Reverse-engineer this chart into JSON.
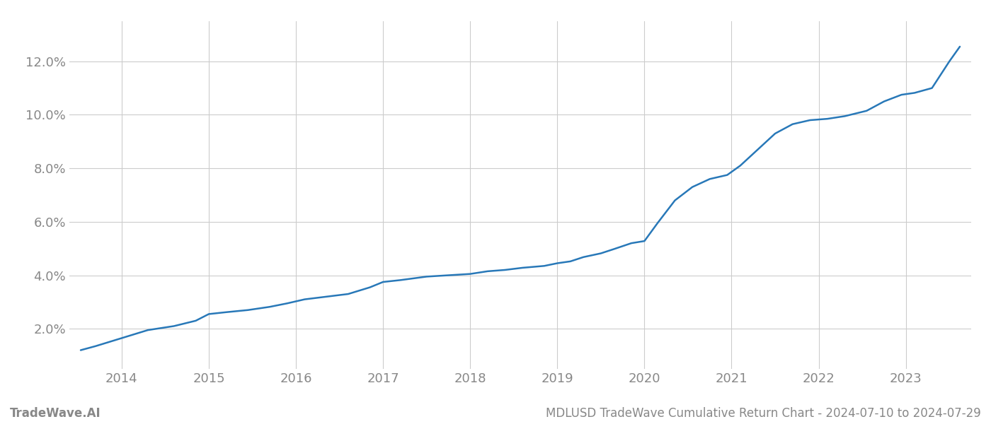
{
  "title": "MDLUSD TradeWave Cumulative Return Chart - 2024-07-10 to 2024-07-29",
  "watermark": "TradeWave.AI",
  "line_color": "#2878b8",
  "background_color": "#ffffff",
  "grid_color": "#cccccc",
  "x_values": [
    2013.53,
    2013.7,
    2013.9,
    2014.1,
    2014.3,
    2014.6,
    2014.85,
    2015.0,
    2015.2,
    2015.45,
    2015.7,
    2015.9,
    2016.1,
    2016.35,
    2016.6,
    2016.85,
    2017.0,
    2017.2,
    2017.5,
    2017.75,
    2018.0,
    2018.2,
    2018.4,
    2018.6,
    2018.85,
    2019.0,
    2019.15,
    2019.3,
    2019.5,
    2019.65,
    2019.85,
    2020.0,
    2020.15,
    2020.35,
    2020.55,
    2020.75,
    2020.95,
    2021.1,
    2021.3,
    2021.5,
    2021.7,
    2021.9,
    2022.1,
    2022.3,
    2022.55,
    2022.75,
    2022.95,
    2023.1,
    2023.3,
    2023.5,
    2023.62
  ],
  "y_values": [
    1.2,
    1.35,
    1.55,
    1.75,
    1.95,
    2.1,
    2.3,
    2.55,
    2.62,
    2.7,
    2.82,
    2.95,
    3.1,
    3.2,
    3.3,
    3.55,
    3.75,
    3.82,
    3.95,
    4.0,
    4.05,
    4.15,
    4.2,
    4.28,
    4.35,
    4.45,
    4.52,
    4.68,
    4.82,
    4.98,
    5.2,
    5.28,
    5.95,
    6.8,
    7.3,
    7.6,
    7.75,
    8.1,
    8.7,
    9.3,
    9.65,
    9.8,
    9.85,
    9.95,
    10.15,
    10.5,
    10.75,
    10.82,
    11.0,
    12.0,
    12.55
  ],
  "xlim": [
    2013.4,
    2023.75
  ],
  "ylim": [
    0.5,
    13.5
  ],
  "yticks": [
    2.0,
    4.0,
    6.0,
    8.0,
    10.0,
    12.0
  ],
  "xticks": [
    2014,
    2015,
    2016,
    2017,
    2018,
    2019,
    2020,
    2021,
    2022,
    2023
  ],
  "tick_label_color": "#888888",
  "tick_fontsize": 13,
  "footer_fontsize": 12,
  "line_width": 1.8
}
